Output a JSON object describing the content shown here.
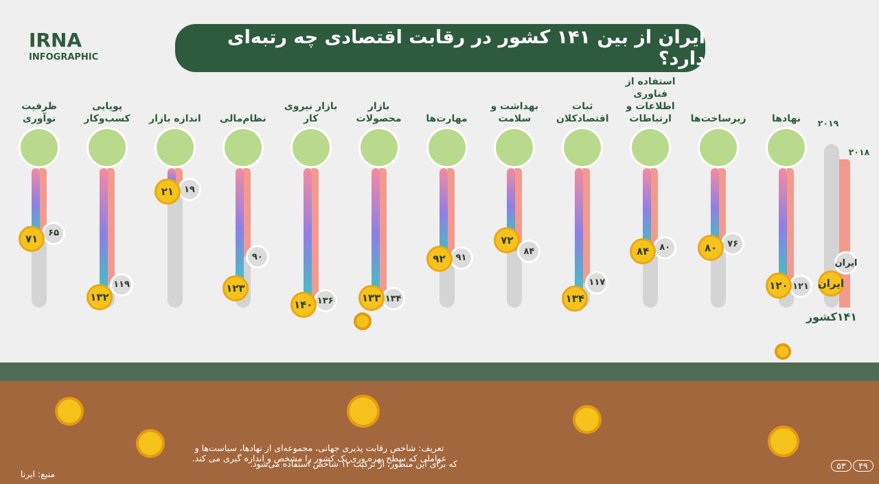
{
  "header": {
    "logo": "IRNA",
    "logo_sub": "INFOGRAPHIC",
    "title": "ایران از بین ۱۴۱ کشور در رقابت اقتصادی چه رتبه‌ای دارد؟"
  },
  "chart_data": {
    "type": "bar",
    "categories": [
      "نهادها",
      "زیرساخت‌ها",
      "استفاده از فناوری اطلاعات و ارتباطات",
      "ثبات اقتصادکلان",
      "بهداشت و سلامت",
      "مهارت‌ها",
      "بازار محصولات",
      "بازار نیروی کار",
      "نظام‌مالی",
      "اندازه بازار",
      "پویایی کسب‌و‌کار",
      "ظرفیت نوآوری"
    ],
    "series": [
      {
        "name": "۲۰۱۹",
        "color": "#f6c21c",
        "values": [
          120,
          80,
          84,
          134,
          72,
          92,
          133,
          140,
          123,
          21,
          132,
          71
        ],
        "value_labels": [
          "۱۲۰",
          "۸۰",
          "۸۴",
          "۱۳۴",
          "۷۲",
          "۹۲",
          "۱۳۳",
          "۱۴۰",
          "۱۲۳",
          "۲۱",
          "۱۳۲",
          "۷۱"
        ]
      },
      {
        "name": "۲۰۱۸",
        "color": "#f29a8e",
        "values": [
          121,
          76,
          80,
          117,
          84,
          91,
          134,
          136,
          90,
          19,
          119,
          65
        ],
        "value_labels": [
          "۱۲۱",
          "۷۶",
          "۸۰",
          "۱۱۷",
          "۸۴",
          "۹۱",
          "۱۳۴",
          "۱۳۶",
          "۹۰",
          "۱۹",
          "۱۱۹",
          "۶۵"
        ]
      }
    ],
    "ylim": [
      0,
      141
    ],
    "legend_label": "ایران",
    "axis_label": "۱۴۱کشور"
  },
  "footer": {
    "definition": [
      "تعریف: شاخص رقابت پذیری جهانی، مجموعه‌ای از نهادها، سیاست‌ها و عواملی که سطح بهره وری یک کشور را مشخص و اندازه گیری می کند.",
      "که برای این منظور، از ترکیب ۱۲ شاخص استفاده می‌شود."
    ],
    "source": "منبع: ایرنا",
    "pages": [
      "۴۹",
      "۵۳"
    ]
  }
}
